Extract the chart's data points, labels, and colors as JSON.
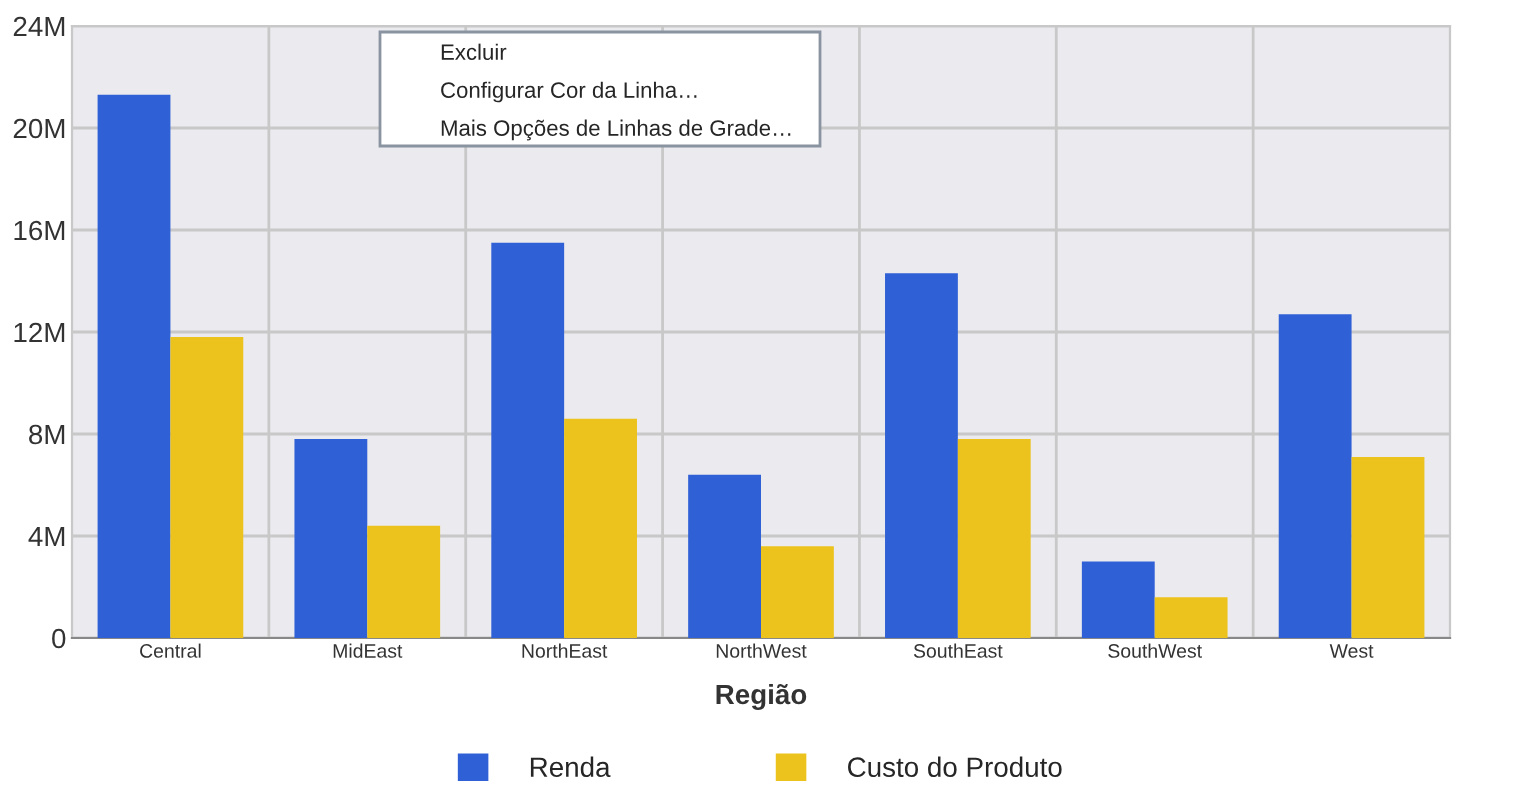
{
  "chart_data": {
    "type": "bar",
    "xlabel": "Região",
    "categories": [
      "Central",
      "MidEast",
      "NorthEast",
      "NorthWest",
      "SouthEast",
      "SouthWest",
      "West"
    ],
    "series": [
      {
        "name": "Renda",
        "color": "#3060d6",
        "values": [
          21.3,
          7.8,
          15.5,
          6.4,
          14.3,
          3.0,
          12.7
        ]
      },
      {
        "name": "Custo do Produto",
        "color": "#ecc31c",
        "values": [
          11.8,
          4.4,
          8.6,
          3.6,
          7.8,
          1.6,
          7.1
        ]
      }
    ],
    "ylim": [
      0,
      24
    ],
    "yticks": [
      0,
      {
        "value": 4,
        "label": "4M"
      },
      {
        "value": 8,
        "label": "8M"
      },
      {
        "value": 12,
        "label": "12M"
      },
      {
        "value": 16,
        "label": "16M"
      },
      {
        "value": 20,
        "label": "20M"
      },
      {
        "value": 24,
        "label": "24M"
      }
    ],
    "grid": true,
    "legend": "bottom",
    "annotations": [
      "Excluir",
      "Configurar Cor da Linha…",
      "Mais Opções de Linhas de Grade…"
    ]
  }
}
